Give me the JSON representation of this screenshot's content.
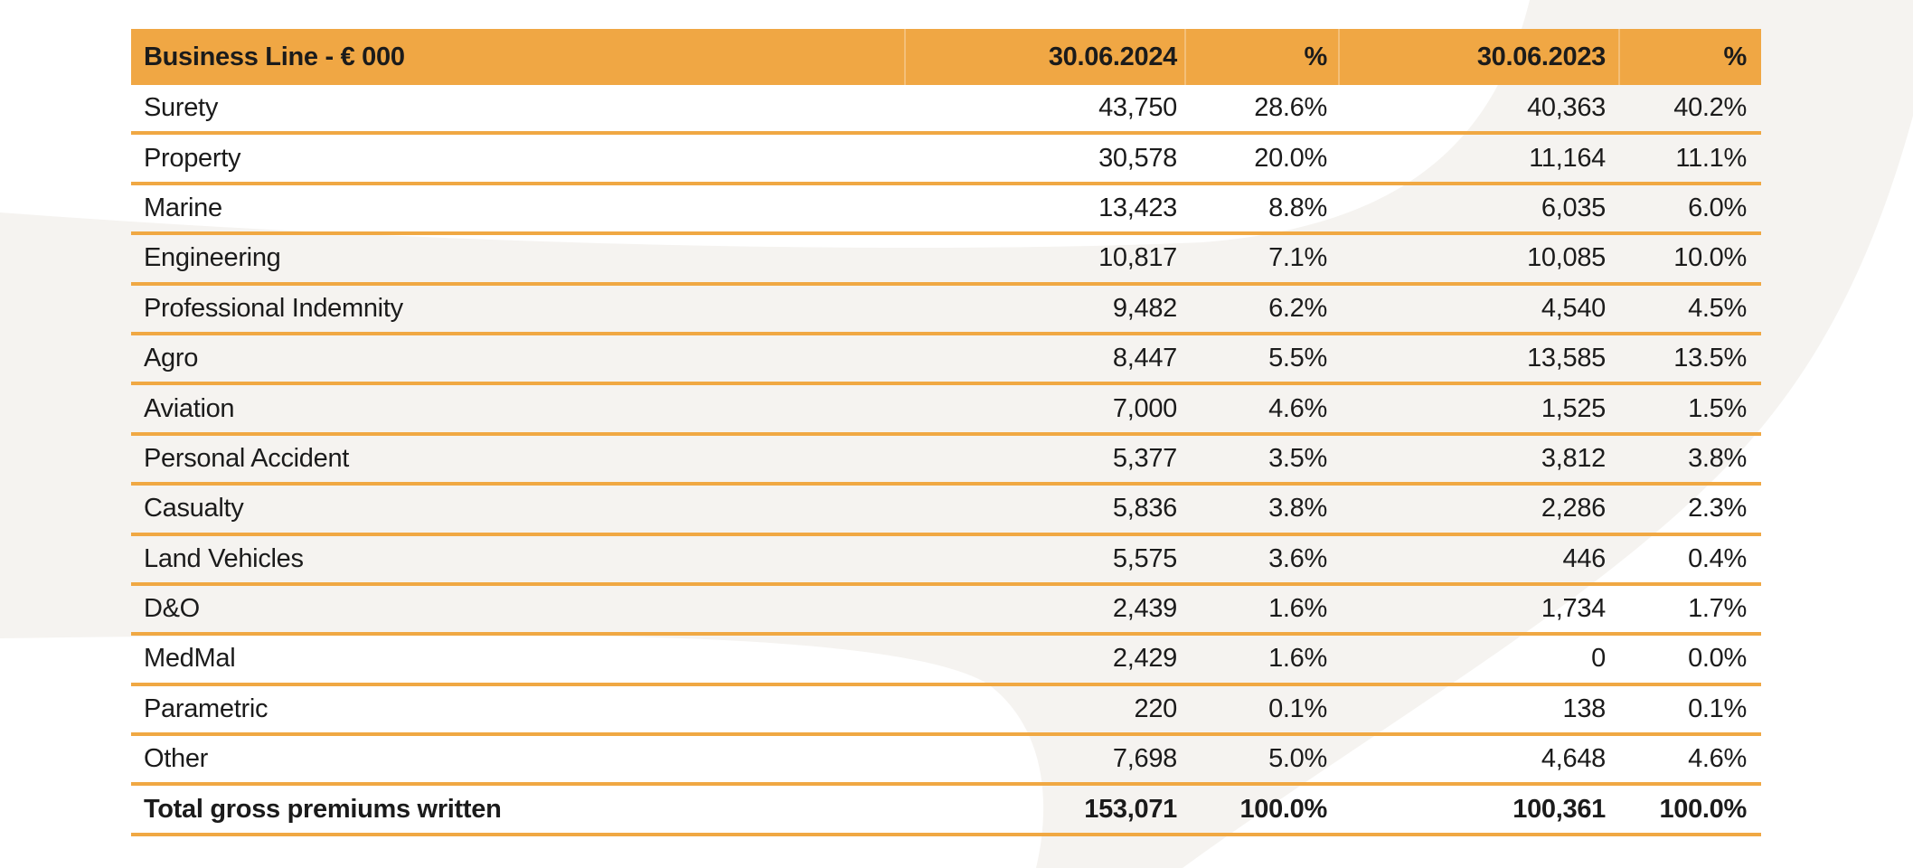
{
  "colors": {
    "header_bg": "#F0A744",
    "row_line": "#F0A843",
    "watermark_gray": "#F5F3F0",
    "text": "#1B1B1B"
  },
  "table": {
    "columns": [
      "Business Line - € 000",
      "30.06.2024",
      "%",
      "30.06.2023",
      "%"
    ],
    "rows": [
      {
        "label": "Surety",
        "v2024": "43,750",
        "p2024": "28.6%",
        "v2023": "40,363",
        "p2023": "40.2%"
      },
      {
        "label": "Property",
        "v2024": "30,578",
        "p2024": "20.0%",
        "v2023": "11,164",
        "p2023": "11.1%"
      },
      {
        "label": "Marine",
        "v2024": "13,423",
        "p2024": "8.8%",
        "v2023": "6,035",
        "p2023": "6.0%"
      },
      {
        "label": "Engineering",
        "v2024": "10,817",
        "p2024": "7.1%",
        "v2023": "10,085",
        "p2023": "10.0%"
      },
      {
        "label": "Professional Indemnity",
        "v2024": "9,482",
        "p2024": "6.2%",
        "v2023": "4,540",
        "p2023": "4.5%"
      },
      {
        "label": "Agro",
        "v2024": "8,447",
        "p2024": "5.5%",
        "v2023": "13,585",
        "p2023": "13.5%"
      },
      {
        "label": "Aviation",
        "v2024": "7,000",
        "p2024": "4.6%",
        "v2023": "1,525",
        "p2023": "1.5%"
      },
      {
        "label": "Personal Accident",
        "v2024": "5,377",
        "p2024": "3.5%",
        "v2023": "3,812",
        "p2023": "3.8%"
      },
      {
        "label": "Casualty",
        "v2024": "5,836",
        "p2024": "3.8%",
        "v2023": "2,286",
        "p2023": "2.3%"
      },
      {
        "label": "Land Vehicles",
        "v2024": "5,575",
        "p2024": "3.6%",
        "v2023": "446",
        "p2023": "0.4%"
      },
      {
        "label": "D&O",
        "v2024": "2,439",
        "p2024": "1.6%",
        "v2023": "1,734",
        "p2023": "1.7%"
      },
      {
        "label": "MedMal",
        "v2024": "2,429",
        "p2024": "1.6%",
        "v2023": "0",
        "p2023": "0.0%"
      },
      {
        "label": "Parametric",
        "v2024": "220",
        "p2024": "0.1%",
        "v2023": "138",
        "p2023": "0.1%"
      },
      {
        "label": "Other",
        "v2024": "7,698",
        "p2024": "5.0%",
        "v2023": "4,648",
        "p2023": "4.6%"
      }
    ],
    "total": {
      "label": "Total gross premiums written",
      "v2024": "153,071",
      "p2024": "100.0%",
      "v2023": "100,361",
      "p2023": "100.0%"
    }
  }
}
